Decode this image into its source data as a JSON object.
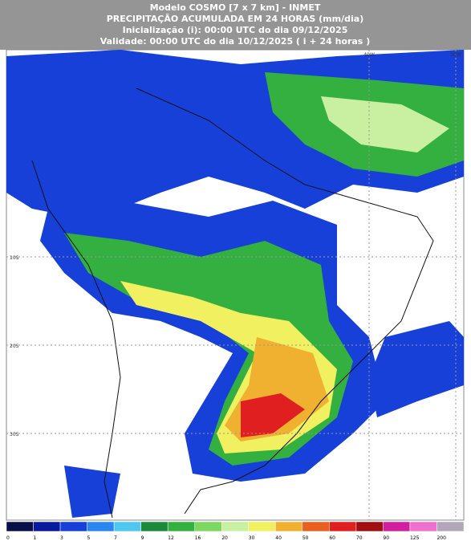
{
  "header": {
    "lines": [
      "Modelo COSMO [7 x 7 km] - INMET",
      "PRECIPITAÇÃO ACUMULADA EM 24 HORAS (mm/dia)",
      "Inicialização (i): 00:00 UTC do dia 09/12/2025",
      "Validade: 00:00 UTC do dia 10/12/2025 ( i + 24 horas )"
    ]
  },
  "map": {
    "lon_labels": [
      "40W",
      "30W"
    ],
    "lat_labels": [
      "10S",
      "20S",
      "30S"
    ]
  },
  "legend": {
    "levels": [
      0,
      1,
      3,
      5,
      7,
      9,
      12,
      16,
      20,
      30,
      40,
      50,
      60,
      70,
      90,
      125,
      200
    ],
    "colors": [
      "#08104a",
      "#0a1a9c",
      "#1640d8",
      "#2a86f0",
      "#4ec8f0",
      "#1a8a3a",
      "#34b040",
      "#7cd860",
      "#c8f0a0",
      "#f0f060",
      "#f0b030",
      "#e86020",
      "#e02020",
      "#a01010",
      "#d020a0",
      "#f070d0",
      "#b0a8b8"
    ]
  }
}
